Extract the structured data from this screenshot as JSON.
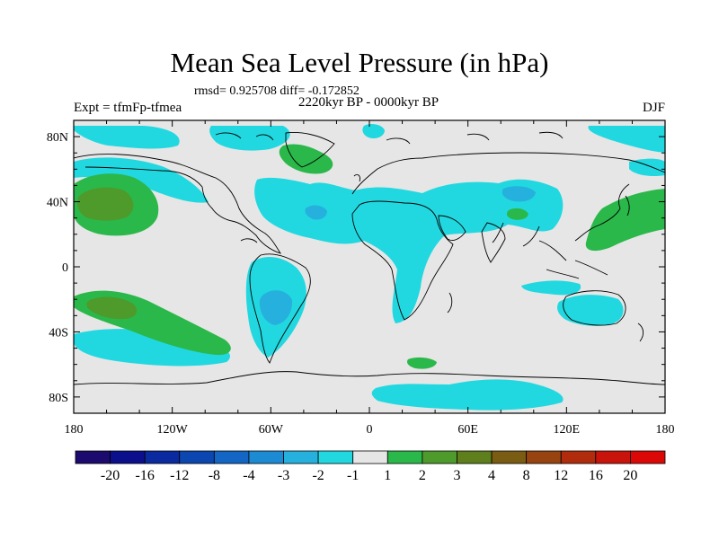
{
  "title": "Mean Sea Level Pressure (in hPa)",
  "stats": "rmsd= 0.925708 diff= -0.172852",
  "experiment": "Expt = tfmFp-tfmea",
  "period": "2220kyr BP - 0000kyr BP",
  "season": "DJF",
  "map": {
    "lat_labels": [
      "80N",
      "40N",
      "0",
      "40S",
      "80S"
    ],
    "lon_labels": [
      "180",
      "120W",
      "60W",
      "0",
      "60E",
      "120E",
      "180"
    ],
    "lat_values": [
      80,
      40,
      0,
      -40,
      -80
    ],
    "lon_values": [
      -180,
      -120,
      -60,
      0,
      60,
      120,
      180
    ]
  },
  "colorbar": {
    "labels": [
      "-20",
      "-16",
      "-12",
      "-8",
      "-4",
      "-3",
      "-2",
      "-1",
      "1",
      "2",
      "3",
      "4",
      "8",
      "12",
      "16",
      "20"
    ],
    "colors": [
      "#1c0a6e",
      "#0c0f8c",
      "#0b2aa0",
      "#0c46b0",
      "#1366c4",
      "#1d8ad4",
      "#26b0dd",
      "#22d8e0",
      "#e6e6e6",
      "#2bb84a",
      "#4e9a2a",
      "#5e7f1c",
      "#7a5c12",
      "#974410",
      "#b02c0c",
      "#c8140a",
      "#dc0808"
    ]
  },
  "colors": {
    "background_field": "#e6e6e6",
    "neg1": "#22d8e0",
    "neg2": "#26b0dd",
    "pos1": "#2bb84a",
    "pos2": "#4e9a2a",
    "pos3": "#5e7f1c"
  }
}
